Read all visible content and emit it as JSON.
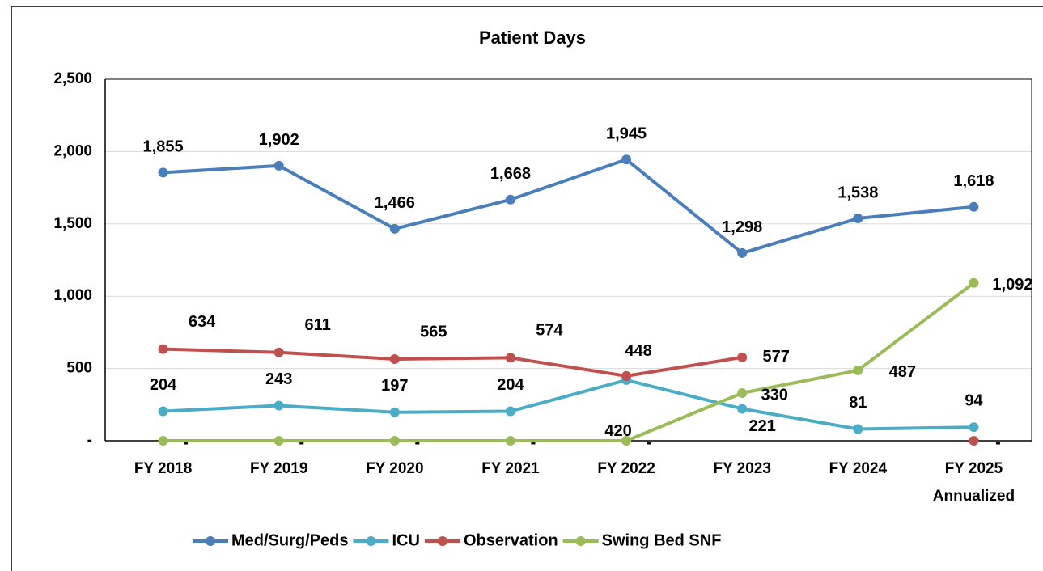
{
  "chart_data": {
    "type": "line",
    "title": "Patient Days",
    "categories": [
      "FY 2018",
      "FY 2019",
      "FY 2020",
      "FY 2021",
      "FY 2022",
      "FY 2023",
      "FY 2024",
      "FY 2025\nAnnualized"
    ],
    "ylim": [
      0,
      2500
    ],
    "yticks": [
      {
        "value": 0,
        "label": "-"
      },
      500,
      {
        "value": 1000,
        "label": "1,000"
      },
      {
        "value": 1500,
        "label": "1,500"
      },
      {
        "value": 2000,
        "label": "2,000"
      },
      {
        "value": 2500,
        "label": "2,500"
      }
    ],
    "grid": true,
    "legend": "bottom",
    "series": [
      {
        "name": "Med/Surg/Peds",
        "color": "#4a7ebb",
        "values": [
          1855,
          1902,
          1466,
          1668,
          1945,
          1298,
          1538,
          1618
        ],
        "value_labels": [
          "1,855",
          "1,902",
          "1,466",
          "1,668",
          "1,945",
          "1,298",
          "1,538",
          "1,618"
        ]
      },
      {
        "name": "ICU",
        "color": "#4bacc6",
        "values": [
          204,
          243,
          197,
          204,
          420,
          221,
          81,
          94
        ]
      },
      {
        "name": "Observation",
        "color": "#c0504d",
        "values": [
          634,
          611,
          565,
          574,
          448,
          577,
          null,
          0
        ],
        "value_labels": [
          "634",
          "611",
          "565",
          "574",
          "448",
          "577",
          null,
          "-"
        ]
      },
      {
        "name": "Swing Bed SNF",
        "color": "#9bbb59",
        "values": [
          0,
          0,
          0,
          0,
          0,
          330,
          487,
          1092
        ],
        "value_labels": [
          "-",
          "-",
          "-",
          "-",
          "-",
          "330",
          "487",
          "1,092"
        ]
      }
    ]
  }
}
